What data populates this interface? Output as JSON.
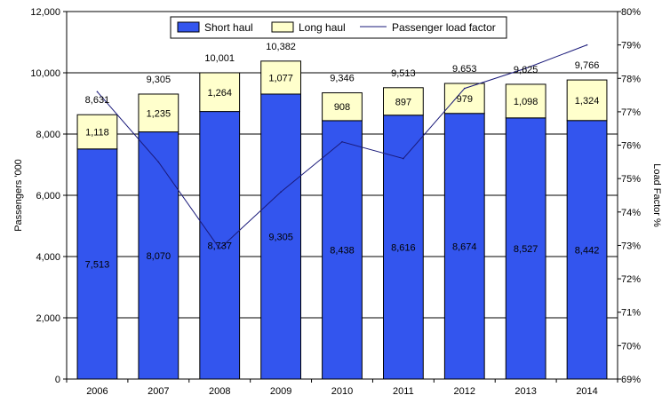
{
  "chart_data": {
    "type": "bar",
    "stacked": true,
    "categories": [
      "2006",
      "2007",
      "2008",
      "2009",
      "2010",
      "2011",
      "2012",
      "2013",
      "2014"
    ],
    "series": [
      {
        "name": "Short haul",
        "kind": "bar",
        "axis": "left",
        "color": "#3355ee",
        "values": [
          7513,
          8070,
          8737,
          9305,
          8438,
          8616,
          8674,
          8527,
          8442
        ],
        "labels": [
          "7,513",
          "8,070",
          "8,737",
          "9,305",
          "8,438",
          "8,616",
          "8,674",
          "8,527",
          "8,442"
        ]
      },
      {
        "name": "Long haul",
        "kind": "bar",
        "axis": "left",
        "color": "#ffffcc",
        "values": [
          1118,
          1235,
          1264,
          1077,
          908,
          897,
          979,
          1098,
          1324
        ],
        "labels": [
          "1,118",
          "1,235",
          "1,264",
          "1,077",
          "908",
          "897",
          "979",
          "1,098",
          "1,324"
        ]
      },
      {
        "name": "Passenger load factor",
        "kind": "line",
        "axis": "right",
        "color": "#1a1a7a",
        "values": [
          77.6,
          75.5,
          72.9,
          74.6,
          76.1,
          75.6,
          77.7,
          78.3,
          79.0
        ]
      }
    ],
    "totals": [
      "8,631",
      "9,305",
      "10,001",
      "10,382",
      "9,346",
      "9,513",
      "9,653",
      "9,625",
      "9,766"
    ],
    "ylabel": "Passengers '000",
    "y2label": "Load Factor %",
    "ylim": [
      0,
      12000
    ],
    "y2lim": [
      69,
      80
    ],
    "y_ticks": [
      "0",
      "2,000",
      "4,000",
      "6,000",
      "8,000",
      "10,000",
      "12,000"
    ],
    "y2_ticks": [
      "69%",
      "70%",
      "71%",
      "72%",
      "73%",
      "74%",
      "75%",
      "76%",
      "77%",
      "78%",
      "79%",
      "80%"
    ],
    "grid": true,
    "legend_position": "top"
  }
}
